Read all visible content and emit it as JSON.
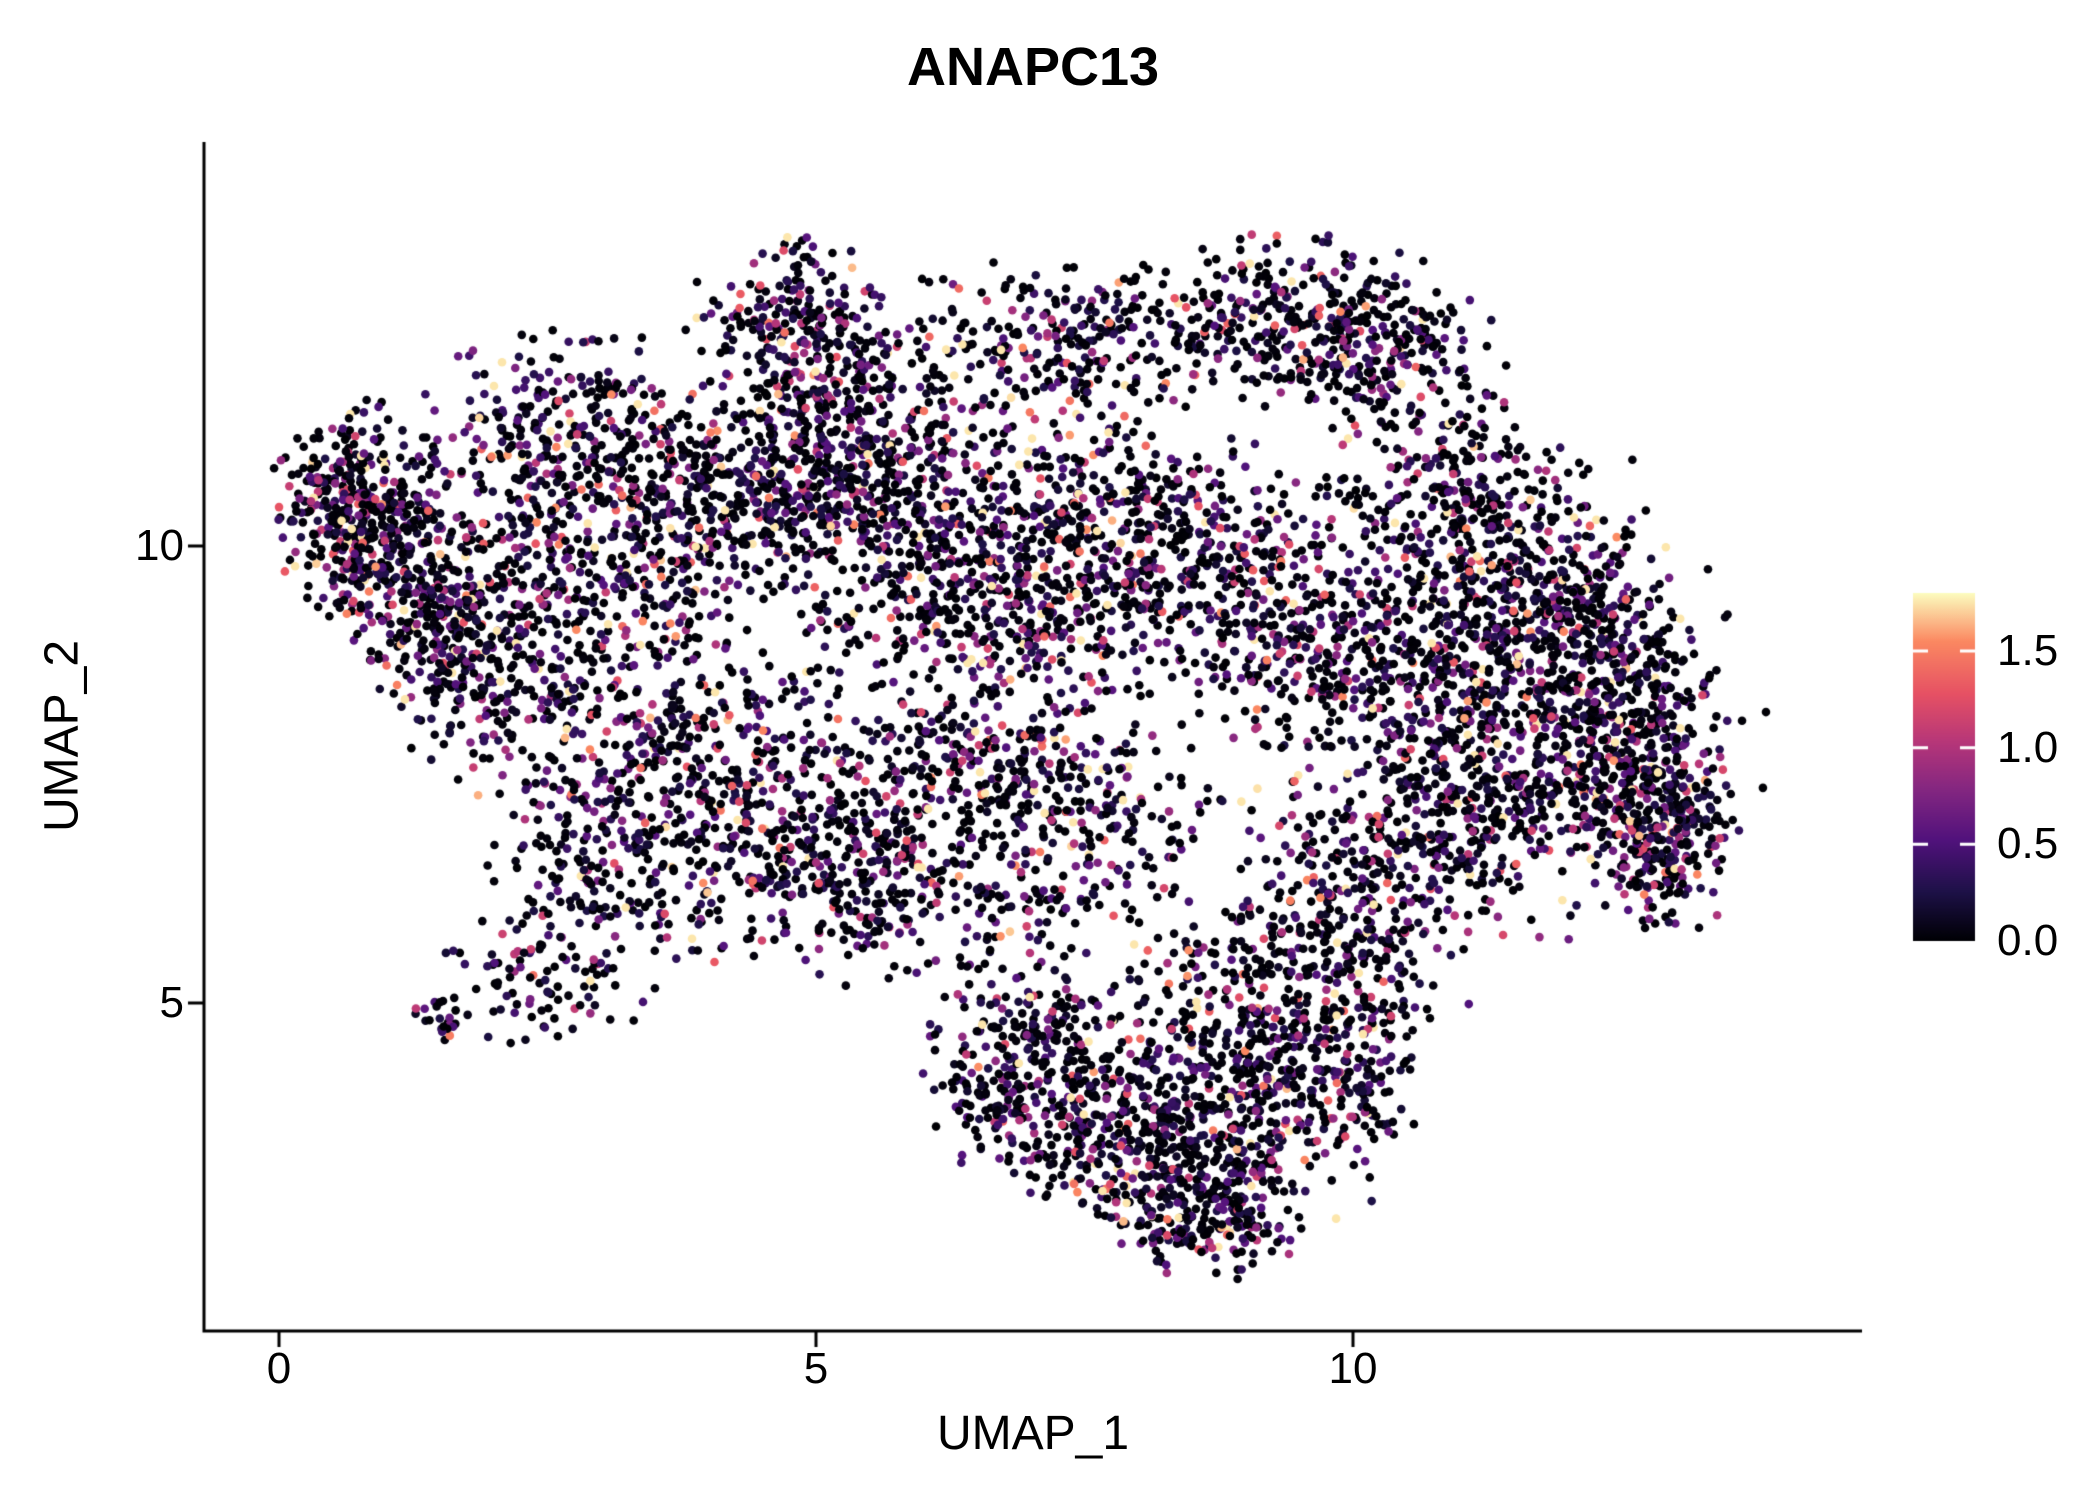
{
  "chart_data": {
    "type": "scatter",
    "title": "ANAPC13",
    "xlabel": "UMAP_1",
    "ylabel": "UMAP_2",
    "xlim": [
      -0.7,
      14.7
    ],
    "ylim": [
      1.4,
      14.4
    ],
    "x_ticks": [
      {
        "value": 0,
        "label": "0"
      },
      {
        "value": 5,
        "label": "5"
      },
      {
        "value": 10,
        "label": "10"
      }
    ],
    "y_ticks": [
      {
        "value": 10,
        "label": "10"
      },
      {
        "value": 5,
        "label": "5"
      }
    ],
    "background_color": "#ffffff",
    "axis_color": "#000000",
    "grid": false,
    "colorbar": {
      "position": "right",
      "range": [
        0.0,
        1.8
      ],
      "ticks": [
        {
          "value": 1.5,
          "label": "1.5"
        },
        {
          "value": 1.0,
          "label": "1.0"
        },
        {
          "value": 0.5,
          "label": "0.5"
        },
        {
          "value": 0.0,
          "label": "0.0"
        }
      ],
      "colormap": "magma",
      "stops": [
        {
          "t": 0.0,
          "color": "#000004"
        },
        {
          "t": 0.14,
          "color": "#1d1147"
        },
        {
          "t": 0.29,
          "color": "#51127c"
        },
        {
          "t": 0.43,
          "color": "#822681"
        },
        {
          "t": 0.57,
          "color": "#b63679"
        },
        {
          "t": 0.71,
          "color": "#e65164"
        },
        {
          "t": 0.86,
          "color": "#fb8861"
        },
        {
          "t": 1.0,
          "color": "#fcfdbf"
        }
      ]
    },
    "point_cloud": {
      "description": "UMAP feature plot of ANAPC13 expression; ~10000 cells colored by expression (0 to ~1.8). Cloud approximated by gaussian clusters in UMAP coordinates.",
      "seed": 123456,
      "dot_radius_px": 4.3,
      "expression_distribution": {
        "zero_fraction": 0.44,
        "tail_scale": 0.55,
        "max": 1.8
      },
      "clusters": [
        {
          "x": 0.75,
          "y": 10.35,
          "sx": 0.38,
          "sy": 0.55,
          "n": 420
        },
        {
          "x": 1.45,
          "y": 9.45,
          "sx": 0.45,
          "sy": 0.5,
          "n": 260
        },
        {
          "x": 1.9,
          "y": 8.6,
          "sx": 0.5,
          "sy": 0.45,
          "n": 170
        },
        {
          "x": 2.6,
          "y": 11.2,
          "sx": 0.65,
          "sy": 0.55,
          "n": 260
        },
        {
          "x": 3.6,
          "y": 10.5,
          "sx": 0.8,
          "sy": 0.65,
          "n": 300
        },
        {
          "x": 2.9,
          "y": 9.6,
          "sx": 0.7,
          "sy": 0.5,
          "n": 200
        },
        {
          "x": 4.8,
          "y": 12.4,
          "sx": 0.45,
          "sy": 0.45,
          "n": 230
        },
        {
          "x": 5.4,
          "y": 11.5,
          "sx": 0.5,
          "sy": 0.5,
          "n": 170
        },
        {
          "x": 4.6,
          "y": 10.8,
          "sx": 0.6,
          "sy": 0.5,
          "n": 220
        },
        {
          "x": 6.7,
          "y": 12.0,
          "sx": 0.55,
          "sy": 0.5,
          "n": 150
        },
        {
          "x": 7.8,
          "y": 12.3,
          "sx": 0.55,
          "sy": 0.42,
          "n": 150
        },
        {
          "x": 9.4,
          "y": 12.5,
          "sx": 0.6,
          "sy": 0.42,
          "n": 250
        },
        {
          "x": 10.4,
          "y": 12.1,
          "sx": 0.5,
          "sy": 0.5,
          "n": 210
        },
        {
          "x": 10.9,
          "y": 10.5,
          "sx": 0.55,
          "sy": 0.6,
          "n": 240
        },
        {
          "x": 11.6,
          "y": 9.9,
          "sx": 0.5,
          "sy": 0.5,
          "n": 170
        },
        {
          "x": 5.3,
          "y": 10.4,
          "sx": 0.6,
          "sy": 0.55,
          "n": 240
        },
        {
          "x": 6.5,
          "y": 10.1,
          "sx": 0.6,
          "sy": 0.5,
          "n": 160
        },
        {
          "x": 7.6,
          "y": 10.6,
          "sx": 0.6,
          "sy": 0.5,
          "n": 170
        },
        {
          "x": 8.6,
          "y": 9.8,
          "sx": 0.65,
          "sy": 0.55,
          "n": 260
        },
        {
          "x": 7.3,
          "y": 9.3,
          "sx": 0.6,
          "sy": 0.5,
          "n": 210
        },
        {
          "x": 6.0,
          "y": 9.2,
          "sx": 0.55,
          "sy": 0.45,
          "n": 130
        },
        {
          "x": 9.6,
          "y": 9.1,
          "sx": 0.6,
          "sy": 0.55,
          "n": 230
        },
        {
          "x": 3.2,
          "y": 7.9,
          "sx": 0.75,
          "sy": 0.65,
          "n": 270
        },
        {
          "x": 4.5,
          "y": 7.0,
          "sx": 0.75,
          "sy": 0.75,
          "n": 380
        },
        {
          "x": 5.5,
          "y": 6.3,
          "sx": 0.55,
          "sy": 0.5,
          "n": 210
        },
        {
          "x": 3.0,
          "y": 6.3,
          "sx": 0.55,
          "sy": 0.5,
          "n": 150
        },
        {
          "x": 2.5,
          "y": 5.2,
          "sx": 0.5,
          "sy": 0.35,
          "n": 85
        },
        {
          "x": 1.55,
          "y": 4.85,
          "sx": 0.16,
          "sy": 0.12,
          "n": 22
        },
        {
          "x": 6.5,
          "y": 7.7,
          "sx": 0.6,
          "sy": 0.55,
          "n": 210
        },
        {
          "x": 7.5,
          "y": 7.1,
          "sx": 0.6,
          "sy": 0.55,
          "n": 200
        },
        {
          "x": 6.9,
          "y": 6.1,
          "sx": 0.5,
          "sy": 0.4,
          "n": 80
        },
        {
          "x": 10.6,
          "y": 8.3,
          "sx": 0.7,
          "sy": 0.65,
          "n": 270
        },
        {
          "x": 11.8,
          "y": 8.6,
          "sx": 0.65,
          "sy": 0.6,
          "n": 300
        },
        {
          "x": 12.6,
          "y": 7.8,
          "sx": 0.42,
          "sy": 0.75,
          "n": 360
        },
        {
          "x": 12.9,
          "y": 6.8,
          "sx": 0.32,
          "sy": 0.5,
          "n": 220
        },
        {
          "x": 11.3,
          "y": 7.0,
          "sx": 0.6,
          "sy": 0.55,
          "n": 250
        },
        {
          "x": 10.2,
          "y": 6.4,
          "sx": 0.55,
          "sy": 0.5,
          "n": 190
        },
        {
          "x": 12.2,
          "y": 9.3,
          "sx": 0.5,
          "sy": 0.45,
          "n": 170
        },
        {
          "x": 9.9,
          "y": 5.8,
          "sx": 0.5,
          "sy": 0.4,
          "n": 110
        },
        {
          "x": 8.3,
          "y": 3.3,
          "sx": 0.6,
          "sy": 0.5,
          "n": 300
        },
        {
          "x": 7.4,
          "y": 3.9,
          "sx": 0.5,
          "sy": 0.5,
          "n": 240
        },
        {
          "x": 9.0,
          "y": 4.3,
          "sx": 0.55,
          "sy": 0.5,
          "n": 230
        },
        {
          "x": 8.7,
          "y": 2.6,
          "sx": 0.4,
          "sy": 0.28,
          "n": 130
        },
        {
          "x": 6.9,
          "y": 4.8,
          "sx": 0.45,
          "sy": 0.4,
          "n": 110
        },
        {
          "x": 9.8,
          "y": 4.8,
          "sx": 0.45,
          "sy": 0.4,
          "n": 130
        },
        {
          "x": 10.0,
          "y": 3.9,
          "sx": 0.3,
          "sy": 0.4,
          "n": 80
        },
        {
          "x": 6.6,
          "y": 4.1,
          "sx": 0.3,
          "sy": 0.4,
          "n": 70
        },
        {
          "x": 8.8,
          "y": 5.4,
          "sx": 0.55,
          "sy": 0.35,
          "n": 90
        },
        {
          "x": 6.0,
          "y": 9.3,
          "sx": 2.6,
          "sy": 1.7,
          "n": 300
        },
        {
          "x": 11.2,
          "y": 8.3,
          "sx": 1.3,
          "sy": 1.5,
          "n": 200
        },
        {
          "x": 8.3,
          "y": 3.9,
          "sx": 1.0,
          "sy": 0.8,
          "n": 150
        }
      ]
    }
  }
}
